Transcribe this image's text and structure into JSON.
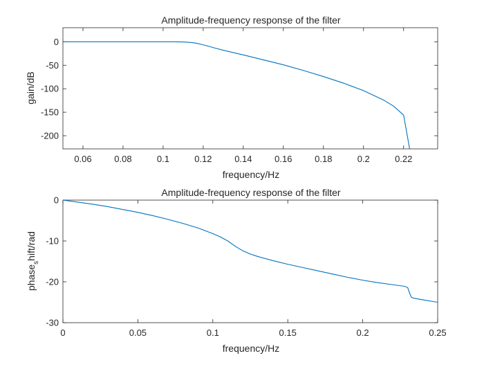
{
  "chart_data": [
    {
      "type": "line",
      "title": "Amplitude-frequency response of the filter",
      "xlabel": "frequency/Hz",
      "ylabel": "gain/dB",
      "xlim": [
        0.05,
        0.237
      ],
      "ylim": [
        -228,
        30
      ],
      "xticks": [
        0.06,
        0.08,
        0.1,
        0.12,
        0.14,
        0.16,
        0.18,
        0.2,
        0.22
      ],
      "xtick_labels": [
        "0.06",
        "0.08",
        "0.1",
        "0.12",
        "0.14",
        "0.16",
        "0.18",
        "0.2",
        "0.22"
      ],
      "yticks": [
        0,
        -50,
        -100,
        -150,
        -200
      ],
      "ytick_labels": [
        "0",
        "-50",
        "-100",
        "-150",
        "-200"
      ],
      "grid": false,
      "color": "#0072BD",
      "series": [
        {
          "x": [
            0.05,
            0.08,
            0.1,
            0.105,
            0.11,
            0.112,
            0.115,
            0.117,
            0.12,
            0.123,
            0.126,
            0.13,
            0.14,
            0.15,
            0.16,
            0.17,
            0.18,
            0.19,
            0.2,
            0.21,
            0.215,
            0.22,
            0.223
          ],
          "y": [
            0,
            0,
            0,
            0,
            -0.3,
            -0.8,
            -2,
            -3.5,
            -6.5,
            -10,
            -13.5,
            -18,
            -28,
            -38.5,
            -49,
            -61,
            -74,
            -88,
            -104,
            -124,
            -137,
            -156,
            -228
          ]
        }
      ]
    },
    {
      "type": "line",
      "title": "Amplitude-frequency response of the filter",
      "xlabel": "frequency/Hz",
      "ylabel": "phase_shift/rad",
      "ylabel_parts": [
        "phase",
        "s",
        "hift/rad"
      ],
      "xlim": [
        0,
        0.25
      ],
      "ylim": [
        -30,
        0
      ],
      "xticks": [
        0,
        0.05,
        0.1,
        0.15,
        0.2,
        0.25
      ],
      "xtick_labels": [
        "0",
        "0.05",
        "0.1",
        "0.15",
        "0.2",
        "0.25"
      ],
      "yticks": [
        0,
        -10,
        -20,
        -30
      ],
      "ytick_labels": [
        "0",
        "-10",
        "-20",
        "-30"
      ],
      "grid": false,
      "color": "#0072BD",
      "series": [
        {
          "x": [
            0,
            0.01,
            0.02,
            0.03,
            0.04,
            0.05,
            0.06,
            0.07,
            0.08,
            0.09,
            0.1,
            0.105,
            0.11,
            0.115,
            0.12,
            0.125,
            0.13,
            0.14,
            0.15,
            0.16,
            0.17,
            0.18,
            0.19,
            0.2,
            0.21,
            0.22,
            0.228,
            0.23,
            0.231,
            0.2325,
            0.234,
            0.24,
            0.25
          ],
          "y": [
            0,
            -0.5,
            -1.0,
            -1.6,
            -2.3,
            -3.0,
            -3.8,
            -4.7,
            -5.7,
            -6.8,
            -8.2,
            -9.0,
            -10.0,
            -11.3,
            -12.4,
            -13.2,
            -13.8,
            -14.8,
            -15.7,
            -16.5,
            -17.3,
            -18.1,
            -18.9,
            -19.6,
            -20.2,
            -20.7,
            -21.1,
            -21.4,
            -22.5,
            -23.8,
            -24.0,
            -24.4,
            -25.0
          ]
        }
      ]
    }
  ]
}
